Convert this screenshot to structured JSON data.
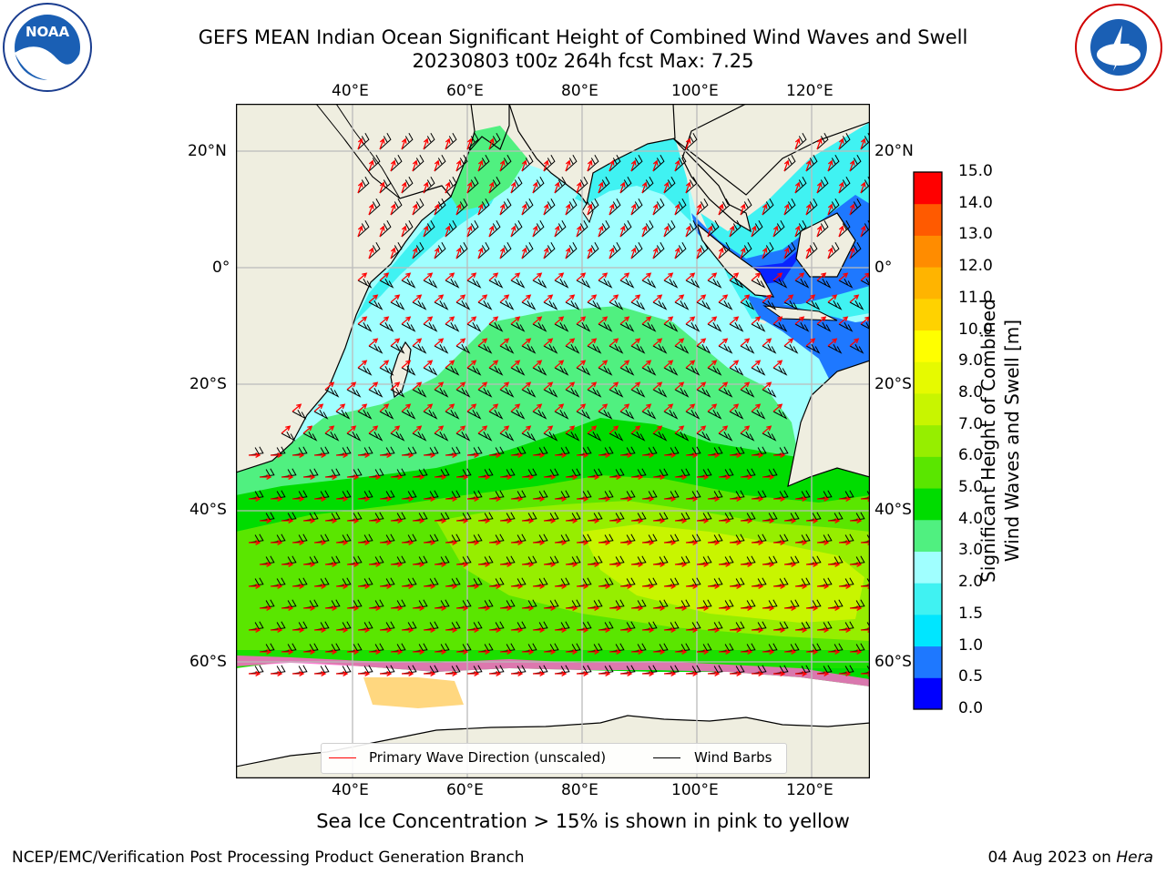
{
  "title_line1": "GEFS MEAN Indian Ocean Significant Height of Combined Wind Waves and Swell",
  "title_line2": "20230803 t00z 264h fcst   Max: 7.25",
  "logos": {
    "left": "noaa-logo",
    "right": "nws-logo"
  },
  "map": {
    "lon_ticks_top": [
      "40°E",
      "60°E",
      "80°E",
      "100°E",
      "120°E"
    ],
    "lon_ticks_bottom": [
      "40°E",
      "60°E",
      "80°E",
      "100°E",
      "120°E"
    ],
    "lat_ticks_left": [
      "20°N",
      "0°",
      "20°S",
      "40°S",
      "60°S"
    ],
    "lat_ticks_right": [
      "20°N",
      "0°",
      "20°S",
      "40°S",
      "60°S"
    ],
    "colors": {
      "land": "#efeee0",
      "antarctic": "#ffffff",
      "grid": "#bbbbbb",
      "wave_dir": "#ff0000",
      "barb": "#000000"
    }
  },
  "legend": {
    "wave_label": "Primary Wave Direction (unscaled)",
    "barb_label": "Wind Barbs"
  },
  "colorbar": {
    "label": "Significant Height of Combined Wind Waves and Swell [m]",
    "ticks": [
      "0.0",
      "0.5",
      "1.0",
      "1.5",
      "2.0",
      "3.0",
      "4.0",
      "5.0",
      "6.0",
      "7.0",
      "8.0",
      "9.0",
      "10.0",
      "11.0",
      "12.0",
      "13.0",
      "14.0",
      "15.0"
    ],
    "colors": [
      "#0000ff",
      "#1e78ff",
      "#00e6ff",
      "#40f2f2",
      "#a0ffff",
      "#50f080",
      "#00dc00",
      "#5ae600",
      "#96ee00",
      "#c8f500",
      "#e6fa00",
      "#ffff00",
      "#ffd200",
      "#ffb400",
      "#ff8c00",
      "#ff5a00",
      "#ff0000"
    ]
  },
  "note": "Sea Ice Concentration > 15% is shown in pink to yellow",
  "footer_left": "NCEP/EMC/Verification Post Processing Product Generation Branch",
  "footer_right_date": "04 Aug 2023 on ",
  "footer_right_host": "Hera"
}
